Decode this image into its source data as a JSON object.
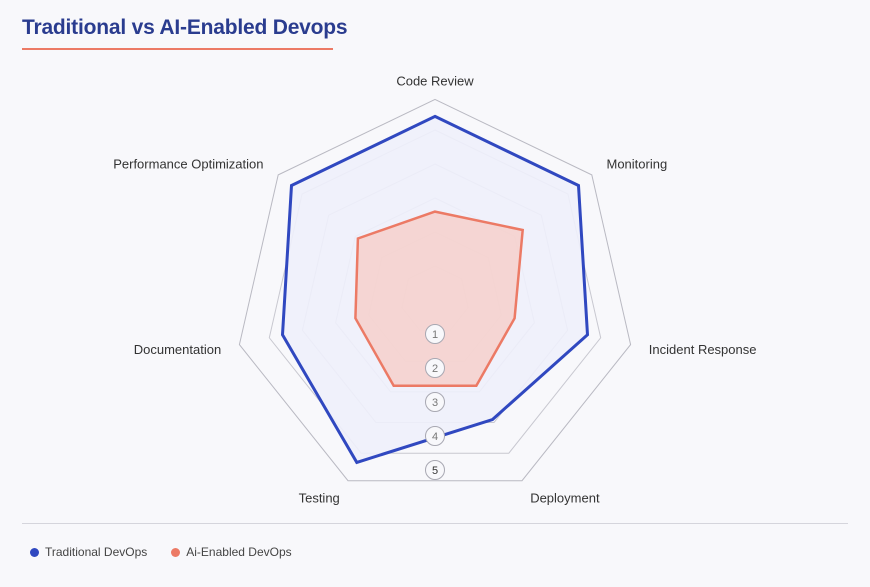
{
  "title": "Traditional vs AI-Enabled Devops",
  "chart_data": {
    "type": "radar",
    "axes": [
      "Code  Review",
      "Monitoring",
      "Incident Response",
      "Deployment",
      "Testing",
      "Documentation",
      "Performance Optimization"
    ],
    "scale": {
      "min": 0,
      "max": 5,
      "ticks": [
        1,
        2,
        3,
        4,
        5
      ]
    },
    "grid": true,
    "legend_position": "bottom-left",
    "series": [
      {
        "name": "Traditional DevOps",
        "color": "#3048c0",
        "fill": "#eef0fb",
        "values": [
          5.4,
          5.4,
          4.6,
          3.9,
          5.3,
          4.6,
          5.4
        ]
      },
      {
        "name": "Ai-Enabled DevOps",
        "color": "#ec7a65",
        "fill": "#f6d0cb",
        "values": [
          2.6,
          3.3,
          2.4,
          2.8,
          2.8,
          2.4,
          2.9
        ]
      }
    ]
  }
}
